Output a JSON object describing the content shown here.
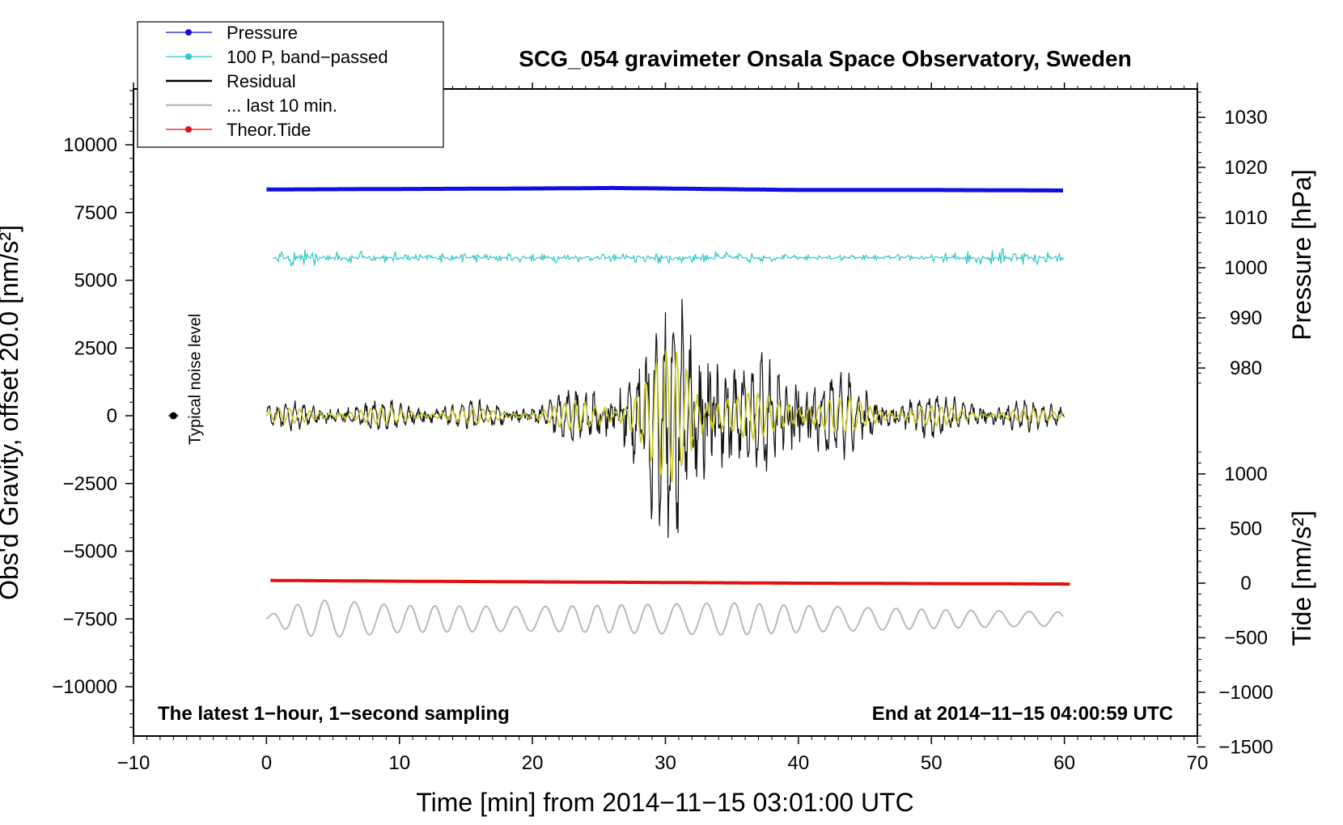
{
  "chart_data": {
    "type": "line",
    "title": "SCG_054 gravimeter Onsala Space Observatory, Sweden",
    "xlabel": "Time [min] from 2014−11−15 03:01:00 UTC",
    "ylabel_left": "Obs'd Gravity, offset 20.0 [nm/s²]",
    "ylabel_right_top": "Pressure [hPa]",
    "ylabel_right_bottom": "Tide [nm/s²]",
    "xlim": [
      -10,
      70
    ],
    "ylim_left": [
      -12000,
      12000
    ],
    "x_ticks": [
      "−10",
      "0",
      "10",
      "20",
      "30",
      "40",
      "50",
      "60",
      "70"
    ],
    "y_left_ticks": [
      "10000",
      "7500",
      "5000",
      "2500",
      "0",
      "−2500",
      "−5000",
      "−7500",
      "−10000"
    ],
    "y_left_tick_values": [
      10000,
      7500,
      5000,
      2500,
      0,
      -2500,
      -5000,
      -7500,
      -10000
    ],
    "pressure_ticks": [
      "1030",
      "1020",
      "1010",
      "1000",
      "990",
      "980"
    ],
    "pressure_tick_values": [
      1030,
      1020,
      1010,
      1000,
      990,
      980
    ],
    "tide_ticks": [
      "1000",
      "500",
      "0",
      "−500",
      "−1000",
      "−1500"
    ],
    "tide_tick_values": [
      1000,
      500,
      0,
      -500,
      -1000,
      -1500
    ],
    "legend_placement": "top-left",
    "legend": [
      {
        "label": "Pressure",
        "color": "#1010e0",
        "marker": true
      },
      {
        "label": "100 P, band−passed",
        "color": "#30c8c8",
        "marker": true
      },
      {
        "label": "Residual",
        "color": "#000000",
        "marker": false
      },
      {
        "label": "... last 10 min.",
        "color": "#b8b8b8",
        "marker": false
      },
      {
        "label": "Theor.Tide",
        "color": "#e01010",
        "marker": true
      }
    ],
    "noise_label": "Typical noise level",
    "noise_point": {
      "x": -7,
      "y": 0
    },
    "note_left": "The latest 1−hour, 1−second sampling",
    "note_right": "End at 2014−11−15 04:00:59 UTC",
    "series": [
      {
        "name": "Pressure",
        "axis": "pressure",
        "color": "#1010e0",
        "x": [
          0,
          10,
          20,
          26,
          30,
          40,
          50,
          60
        ],
        "y": [
          1015.6,
          1015.7,
          1015.8,
          1015.9,
          1015.8,
          1015.5,
          1015.5,
          1015.4
        ]
      },
      {
        "name": "100 P, band−passed",
        "axis": "pressure",
        "color": "#30c8c8",
        "x": [
          0,
          2.5,
          5,
          10,
          20,
          25,
          30,
          35,
          40,
          50,
          55,
          60
        ],
        "y_center": 1002,
        "amplitude": [
          0.6,
          2.5,
          1.5,
          1.2,
          1.0,
          1.0,
          1.6,
          1.2,
          0.6,
          0.8,
          2.2,
          1.0
        ]
      },
      {
        "name": "Residual",
        "axis": "left",
        "color": "#111111",
        "x": [
          0,
          10,
          20,
          25,
          28,
          30,
          31,
          32,
          33,
          35,
          38,
          40,
          42,
          45,
          50,
          55,
          60
        ],
        "y_center": 0,
        "amplitude": [
          400,
          450,
          400,
          1000,
          2200,
          3500,
          4600,
          4500,
          3500,
          1800,
          1800,
          2000,
          1500,
          900,
          650,
          500,
          400
        ]
      },
      {
        "name": "Band-passed residual",
        "axis": "left",
        "color": "#c8c81e",
        "x": [
          0,
          10,
          20,
          25,
          28,
          30,
          31,
          32,
          33,
          35,
          38,
          40,
          42,
          45,
          50,
          55,
          60
        ],
        "y_center": 0,
        "amplitude": [
          250,
          300,
          250,
          700,
          1300,
          2300,
          3000,
          2900,
          2000,
          900,
          800,
          1100,
          700,
          550,
          350,
          250,
          200
        ]
      },
      {
        "name": "... last 10 min.",
        "axis": "left",
        "color": "#b8b8b8",
        "x": [
          0,
          2,
          4,
          6,
          10,
          20,
          30,
          35,
          40,
          50,
          60
        ],
        "y_center": -7500,
        "amplitude": [
          100,
          500,
          700,
          650,
          500,
          450,
          550,
          600,
          500,
          350,
          250
        ]
      },
      {
        "name": "Theor.Tide",
        "axis": "tide",
        "color": "#e01010",
        "x": [
          0.3,
          10,
          20,
          30,
          40,
          50,
          60.5
        ],
        "y": [
          25,
          18,
          12,
          6,
          0,
          -4,
          -8
        ]
      }
    ]
  }
}
